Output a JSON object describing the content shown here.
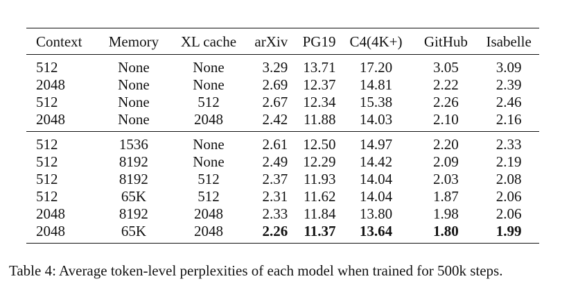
{
  "table": {
    "columns": [
      "Context",
      "Memory",
      "XL cache",
      "arXiv",
      "PG19",
      "C4(4K+)",
      "GitHub",
      "Isabelle"
    ],
    "group1": [
      [
        "512",
        "None",
        "None",
        "3.29",
        "13.71",
        "17.20",
        "3.05",
        "3.09"
      ],
      [
        "2048",
        "None",
        "None",
        "2.69",
        "12.37",
        "14.81",
        "2.22",
        "2.39"
      ],
      [
        "512",
        "None",
        "512",
        "2.67",
        "12.34",
        "15.38",
        "2.26",
        "2.46"
      ],
      [
        "2048",
        "None",
        "2048",
        "2.42",
        "11.88",
        "14.03",
        "2.10",
        "2.16"
      ]
    ],
    "group2": [
      [
        "512",
        "1536",
        "None",
        "2.61",
        "12.50",
        "14.97",
        "2.20",
        "2.33"
      ],
      [
        "512",
        "8192",
        "None",
        "2.49",
        "12.29",
        "14.42",
        "2.09",
        "2.19"
      ],
      [
        "512",
        "8192",
        "512",
        "2.37",
        "11.93",
        "14.04",
        "2.03",
        "2.08"
      ],
      [
        "512",
        "65K",
        "512",
        "2.31",
        "11.62",
        "14.04",
        "1.87",
        "2.06"
      ],
      [
        "2048",
        "8192",
        "2048",
        "2.33",
        "11.84",
        "13.80",
        "1.98",
        "2.06"
      ],
      [
        "2048",
        "65K",
        "2048",
        "2.26",
        "11.37",
        "13.64",
        "1.80",
        "1.99"
      ]
    ]
  },
  "caption": "Table 4: Average token-level perplexities of each model when trained for 500k steps."
}
